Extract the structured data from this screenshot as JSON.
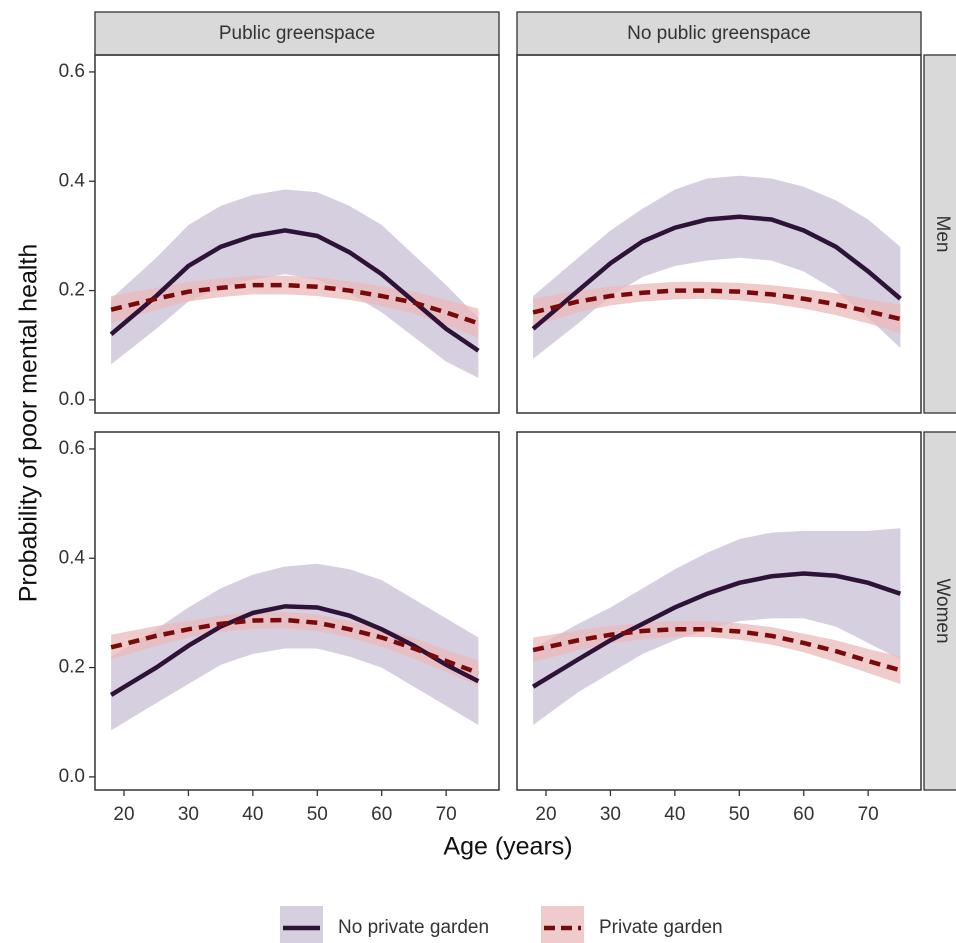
{
  "chart_data": {
    "type": "line",
    "x_label": "Age (years)",
    "y_label": "Probability of poor mental health",
    "column_labels": [
      "Public greenspace",
      "No public greenspace"
    ],
    "row_labels": [
      "Men",
      "Women"
    ],
    "series": [
      {
        "name": "No private garden",
        "color": "#2e1238",
        "band_color": "#c8bfd4",
        "dashed": false
      },
      {
        "name": "Private garden",
        "color": "#7a0a0a",
        "band_color": "#eab9b9",
        "dashed": true
      }
    ],
    "x": [
      18,
      25,
      30,
      35,
      40,
      45,
      50,
      55,
      60,
      65,
      70,
      75
    ],
    "xlim": [
      15.5,
      78.2
    ],
    "xticks": [
      20,
      30,
      40,
      50,
      60,
      70
    ],
    "ylim": [
      -0.024,
      0.631
    ],
    "yticks": [
      {
        "value": 0,
        "label": "0.0"
      },
      0.2,
      0.4,
      0.6
    ],
    "panels": [
      {
        "series": [
          {
            "values": [
              0.12,
              0.19,
              0.245,
              0.28,
              0.3,
              0.31,
              0.3,
              0.27,
              0.23,
              0.18,
              0.13,
              0.09
            ],
            "lower": [
              0.065,
              0.13,
              0.18,
              0.205,
              0.22,
              0.23,
              0.22,
              0.195,
              0.16,
              0.115,
              0.07,
              0.04
            ],
            "upper": [
              0.185,
              0.26,
              0.32,
              0.355,
              0.375,
              0.385,
              0.38,
              0.355,
              0.32,
              0.265,
              0.21,
              0.15
            ]
          },
          {
            "values": [
              0.165,
              0.185,
              0.198,
              0.205,
              0.21,
              0.21,
              0.207,
              0.2,
              0.19,
              0.178,
              0.16,
              0.14
            ],
            "lower": [
              0.14,
              0.165,
              0.18,
              0.188,
              0.193,
              0.193,
              0.19,
              0.183,
              0.172,
              0.158,
              0.137,
              0.113
            ],
            "upper": [
              0.19,
              0.205,
              0.216,
              0.222,
              0.227,
              0.227,
              0.224,
              0.217,
              0.208,
              0.198,
              0.183,
              0.167
            ]
          }
        ]
      },
      {
        "series": [
          {
            "values": [
              0.13,
              0.2,
              0.25,
              0.29,
              0.315,
              0.33,
              0.335,
              0.33,
              0.31,
              0.28,
              0.235,
              0.185
            ],
            "lower": [
              0.075,
              0.14,
              0.19,
              0.225,
              0.245,
              0.255,
              0.26,
              0.255,
              0.235,
              0.2,
              0.15,
              0.095
            ],
            "upper": [
              0.19,
              0.26,
              0.31,
              0.35,
              0.385,
              0.405,
              0.41,
              0.405,
              0.39,
              0.365,
              0.33,
              0.28
            ]
          },
          {
            "values": [
              0.16,
              0.18,
              0.19,
              0.196,
              0.2,
              0.2,
              0.198,
              0.193,
              0.185,
              0.175,
              0.162,
              0.148
            ],
            "lower": [
              0.135,
              0.16,
              0.173,
              0.18,
              0.184,
              0.185,
              0.182,
              0.176,
              0.167,
              0.155,
              0.14,
              0.122
            ],
            "upper": [
              0.185,
              0.2,
              0.207,
              0.212,
              0.216,
              0.216,
              0.214,
              0.21,
              0.203,
              0.195,
              0.184,
              0.174
            ]
          }
        ]
      },
      {
        "series": [
          {
            "values": [
              0.15,
              0.2,
              0.24,
              0.275,
              0.3,
              0.312,
              0.31,
              0.295,
              0.27,
              0.24,
              0.205,
              0.175
            ],
            "lower": [
              0.085,
              0.135,
              0.17,
              0.205,
              0.225,
              0.235,
              0.235,
              0.22,
              0.2,
              0.165,
              0.13,
              0.095
            ],
            "upper": [
              0.22,
              0.27,
              0.31,
              0.345,
              0.37,
              0.385,
              0.39,
              0.38,
              0.36,
              0.325,
              0.29,
              0.255
            ]
          },
          {
            "values": [
              0.237,
              0.258,
              0.27,
              0.28,
              0.286,
              0.287,
              0.282,
              0.27,
              0.255,
              0.235,
              0.212,
              0.19
            ],
            "lower": [
              0.215,
              0.24,
              0.255,
              0.265,
              0.271,
              0.272,
              0.267,
              0.255,
              0.238,
              0.216,
              0.192,
              0.167
            ],
            "upper": [
              0.26,
              0.276,
              0.285,
              0.295,
              0.301,
              0.302,
              0.297,
              0.285,
              0.272,
              0.254,
              0.232,
              0.213
            ]
          }
        ]
      },
      {
        "series": [
          {
            "values": [
              0.165,
              0.215,
              0.25,
              0.28,
              0.31,
              0.335,
              0.355,
              0.367,
              0.372,
              0.368,
              0.355,
              0.335
            ],
            "lower": [
              0.095,
              0.155,
              0.19,
              0.225,
              0.25,
              0.27,
              0.285,
              0.29,
              0.29,
              0.275,
              0.245,
              0.215
            ],
            "upper": [
              0.235,
              0.28,
              0.31,
              0.345,
              0.38,
              0.41,
              0.435,
              0.447,
              0.45,
              0.45,
              0.45,
              0.455
            ]
          },
          {
            "values": [
              0.232,
              0.25,
              0.26,
              0.267,
              0.27,
              0.27,
              0.266,
              0.258,
              0.245,
              0.23,
              0.212,
              0.195
            ],
            "lower": [
              0.21,
              0.232,
              0.244,
              0.252,
              0.256,
              0.256,
              0.251,
              0.242,
              0.228,
              0.21,
              0.19,
              0.17
            ],
            "upper": [
              0.255,
              0.268,
              0.276,
              0.282,
              0.285,
              0.285,
              0.281,
              0.274,
              0.262,
              0.25,
              0.234,
              0.22
            ]
          }
        ]
      }
    ]
  }
}
